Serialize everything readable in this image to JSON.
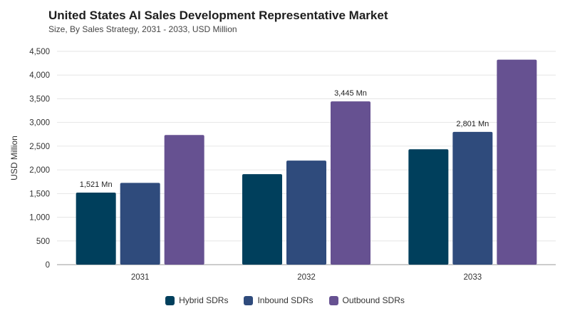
{
  "header": {
    "title": "United States AI Sales Development Representative Market",
    "subtitle": "Size, By Sales Strategy, 2031 - 2033, USD Million"
  },
  "colors": {
    "hybrid": "#003f5c",
    "inbound": "#2f4b7c",
    "outbound": "#665191",
    "grid": "#e6e6e6",
    "axis": "#999999"
  },
  "chart_data": {
    "type": "bar",
    "categories": [
      "2031",
      "2032",
      "2033"
    ],
    "series": [
      {
        "name": "Hybrid SDRs",
        "values": [
          1521,
          1910,
          2435
        ]
      },
      {
        "name": "Inbound SDRs",
        "values": [
          1725,
          2195,
          2801
        ]
      },
      {
        "name": "Outbound SDRs",
        "values": [
          2735,
          3445,
          4325
        ]
      }
    ],
    "ylabel": "USD Million",
    "ylim": [
      0,
      4500
    ],
    "yticks": [
      0,
      500,
      1000,
      1500,
      2000,
      2500,
      3000,
      3500,
      4000,
      4500
    ],
    "ytick_labels": [
      "0",
      "500",
      "1,000",
      "1,500",
      "2,000",
      "2,500",
      "3,000",
      "3,500",
      "4,000",
      "4,500"
    ],
    "data_labels": [
      {
        "series": 0,
        "category": 0,
        "text": "1,521 Mn"
      },
      {
        "series": 2,
        "category": 1,
        "text": "3,445 Mn"
      },
      {
        "series": 1,
        "category": 2,
        "text": "2,801 Mn"
      }
    ],
    "grid": true,
    "legend_position": "bottom"
  }
}
